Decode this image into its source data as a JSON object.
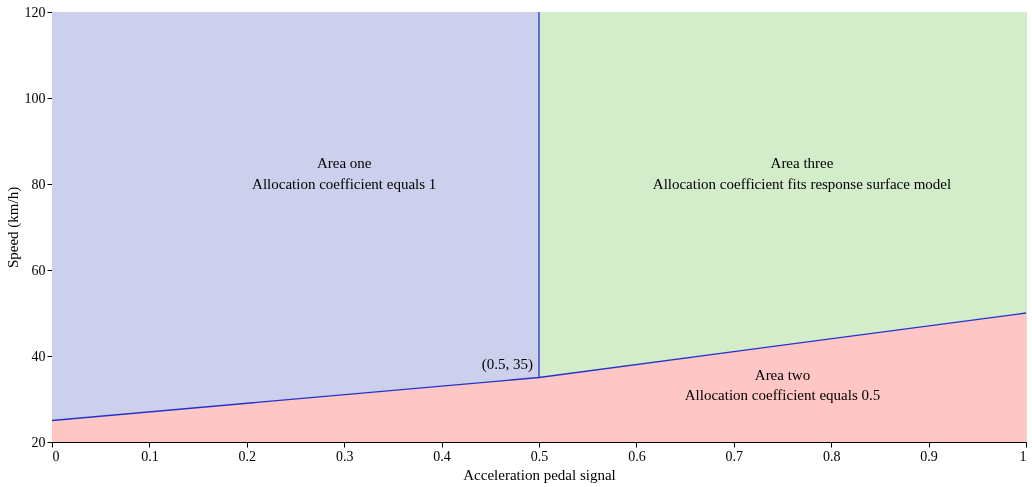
{
  "chart_data": {
    "type": "area",
    "xlabel": "Acceleration pedal signal",
    "ylabel": "Speed (km/h)",
    "xlim": [
      0,
      1
    ],
    "ylim": [
      20,
      120
    ],
    "xticks": [
      0,
      0.1,
      0.2,
      0.3,
      0.4,
      0.5,
      0.6,
      0.7,
      0.8,
      0.9,
      1
    ],
    "yticks": [
      20,
      40,
      60,
      80,
      100,
      120
    ],
    "grid": false,
    "series": [
      {
        "color": "#cdd0ec",
        "x": [
          0,
          0.5
        ],
        "values": [
          120,
          120
        ]
      },
      {
        "color": "#d3ecca",
        "x": [
          0.5,
          1
        ],
        "values": [
          120,
          120
        ]
      },
      {
        "color": "#ffc6c6",
        "x": [
          0,
          0.5,
          1
        ],
        "values": [
          25,
          35,
          50
        ]
      },
      {
        "type": "line",
        "color": "#2233cc",
        "x": [
          0,
          0.5,
          1
        ],
        "values": [
          25,
          35,
          50
        ]
      },
      {
        "type": "line",
        "color": "#2233cc",
        "x": [
          0.5,
          0.5
        ],
        "values": [
          35,
          120
        ]
      }
    ],
    "annotations": [
      "Area one",
      "Allocation coefficient equals 1",
      "Area three",
      "Allocation coefficient fits response surface model",
      "Area two",
      "Allocation coefficient equals 0.5",
      {
        "text": "(0.5, 35)",
        "x": 0.5,
        "y": 35
      }
    ]
  }
}
